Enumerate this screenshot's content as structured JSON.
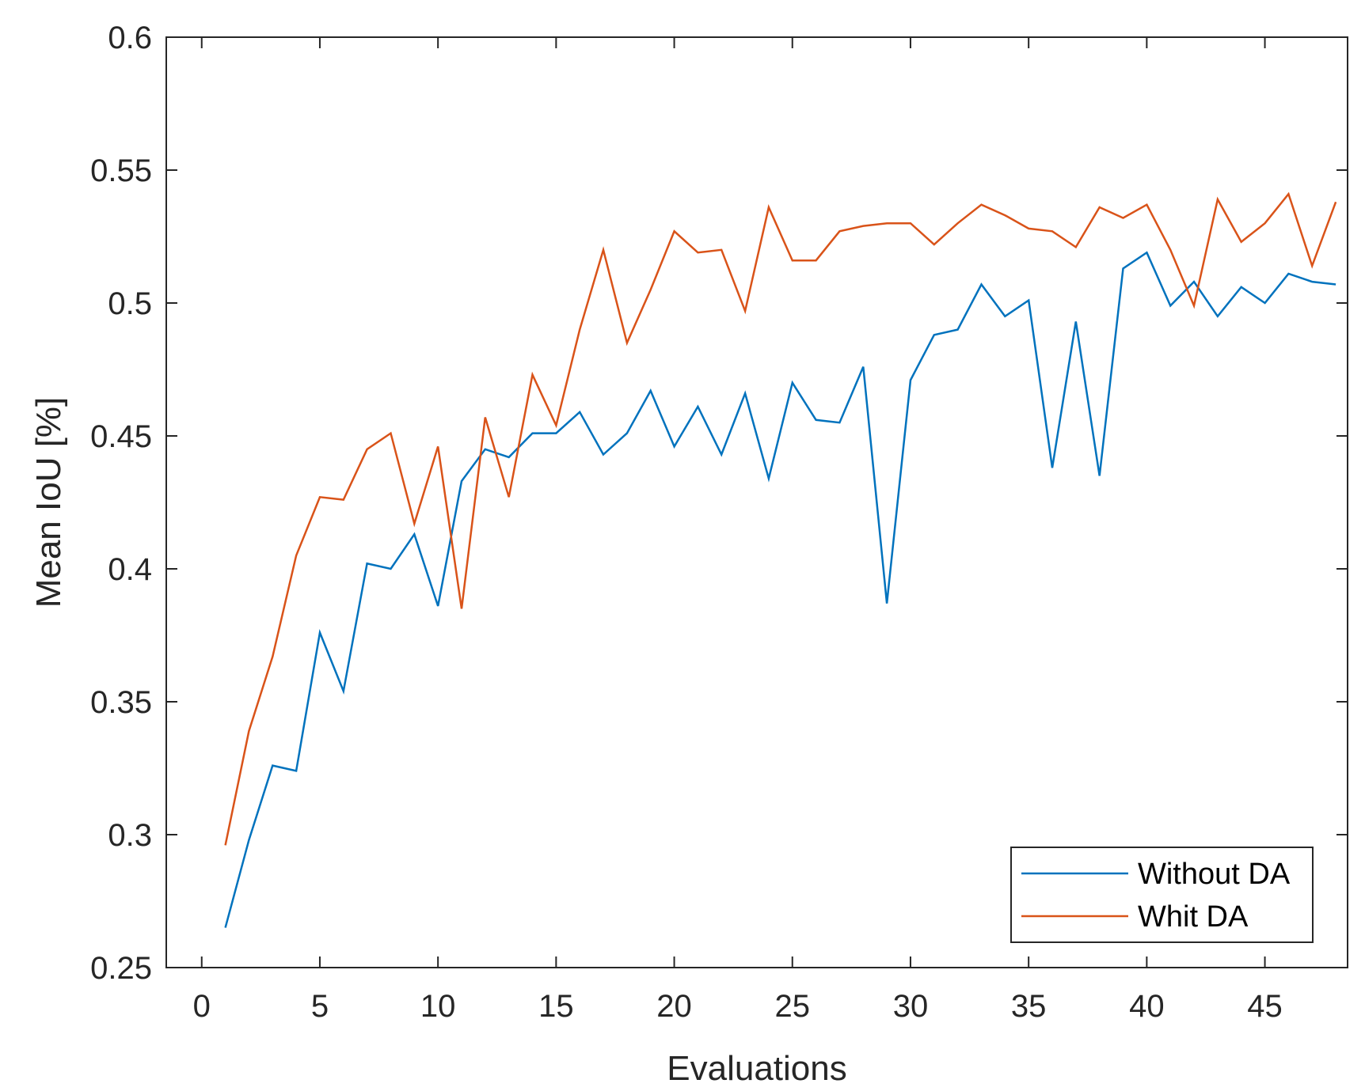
{
  "chart_data": {
    "type": "line",
    "title": "",
    "xlabel": "Evaluations",
    "ylabel": "Mean IoU [%]",
    "xlim": [
      -1.5,
      48.5
    ],
    "ylim": [
      0.25,
      0.6
    ],
    "xticks": [
      0,
      5,
      10,
      15,
      20,
      25,
      30,
      35,
      40,
      45
    ],
    "yticks": [
      0.25,
      0.3,
      0.35,
      0.4,
      0.45,
      0.5,
      0.55,
      0.6
    ],
    "xtick_labels": [
      "0",
      "5",
      "10",
      "15",
      "20",
      "25",
      "30",
      "35",
      "40",
      "45"
    ],
    "ytick_labels": [
      "0.25",
      "0.3",
      "0.35",
      "0.4",
      "0.45",
      "0.5",
      "0.55",
      "0.6"
    ],
    "grid": false,
    "legend_position": "bottom-right",
    "x": [
      1,
      2,
      3,
      4,
      5,
      6,
      7,
      8,
      9,
      10,
      11,
      12,
      13,
      14,
      15,
      16,
      17,
      18,
      19,
      20,
      21,
      22,
      23,
      24,
      25,
      26,
      27,
      28,
      29,
      30,
      31,
      32,
      33,
      34,
      35,
      36,
      37,
      38,
      39,
      40,
      41,
      42,
      43,
      44,
      45,
      46,
      47,
      48
    ],
    "series": [
      {
        "name": "Without DA",
        "color": "#0072BD",
        "values": [
          0.265,
          0.298,
          0.326,
          0.324,
          0.376,
          0.354,
          0.402,
          0.4,
          0.413,
          0.386,
          0.433,
          0.445,
          0.442,
          0.451,
          0.451,
          0.459,
          0.443,
          0.451,
          0.467,
          0.446,
          0.461,
          0.443,
          0.466,
          0.434,
          0.47,
          0.456,
          0.455,
          0.476,
          0.387,
          0.471,
          0.488,
          0.49,
          0.507,
          0.495,
          0.501,
          0.438,
          0.493,
          0.435,
          0.513,
          0.519,
          0.499,
          0.508,
          0.495,
          0.506,
          0.5,
          0.511,
          0.508,
          0.507
        ]
      },
      {
        "name": "Whit DA",
        "color": "#D95319",
        "values": [
          0.296,
          0.339,
          0.367,
          0.405,
          0.427,
          0.426,
          0.445,
          0.451,
          0.417,
          0.446,
          0.385,
          0.457,
          0.427,
          0.473,
          0.454,
          0.49,
          0.52,
          0.485,
          0.505,
          0.527,
          0.519,
          0.52,
          0.497,
          0.536,
          0.516,
          0.516,
          0.527,
          0.529,
          0.53,
          0.53,
          0.522,
          0.53,
          0.537,
          0.533,
          0.528,
          0.527,
          0.521,
          0.536,
          0.532,
          0.537,
          0.52,
          0.499,
          0.539,
          0.523,
          0.53,
          0.541,
          0.514,
          0.538
        ]
      }
    ]
  }
}
